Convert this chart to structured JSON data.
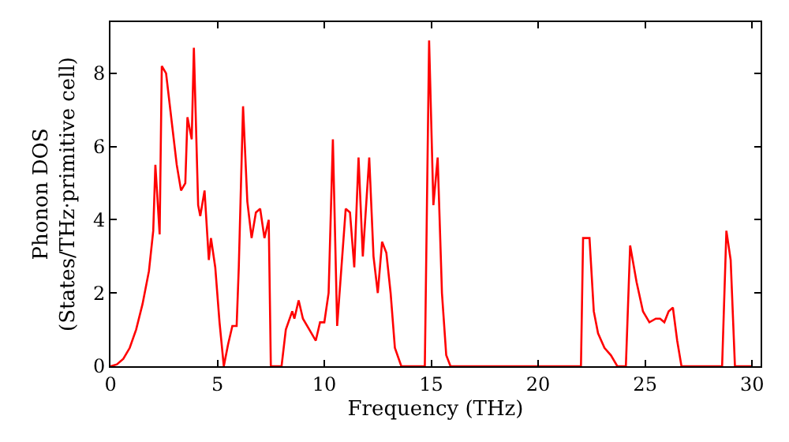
{
  "chart_data": {
    "type": "line",
    "xlabel": "Frequency (THz)",
    "ylabel": "Phonon DOS\n(States/THz·primitive cell)",
    "xlim": [
      0,
      30.4
    ],
    "ylim": [
      0,
      9.4
    ],
    "xticks": [
      0,
      5,
      10,
      15,
      20,
      25,
      30
    ],
    "yticks": [
      0,
      2,
      4,
      6,
      8
    ],
    "grid": false,
    "marker": "none",
    "line_style": "solid",
    "series": [
      {
        "color": "#ff0000",
        "x": [
          0,
          0.3,
          0.6,
          0.9,
          1.2,
          1.5,
          1.8,
          2.0,
          2.1,
          2.3,
          2.4,
          2.6,
          2.9,
          3.1,
          3.3,
          3.5,
          3.6,
          3.8,
          3.9,
          4.1,
          4.2,
          4.4,
          4.6,
          4.7,
          4.9,
          5.1,
          5.3,
          5.5,
          5.7,
          5.9,
          6.0,
          6.2,
          6.4,
          6.6,
          6.8,
          7.0,
          7.2,
          7.4,
          7.5,
          8.0,
          8.2,
          8.5,
          8.6,
          8.8,
          9.0,
          9.3,
          9.6,
          9.8,
          10.0,
          10.2,
          10.4,
          10.6,
          11.0,
          11.2,
          11.4,
          11.6,
          11.8,
          12.1,
          12.3,
          12.5,
          12.7,
          12.9,
          13.1,
          13.3,
          13.6,
          14.7,
          14.9,
          15.1,
          15.3,
          15.5,
          15.7,
          15.9,
          22.0,
          22.1,
          22.4,
          22.6,
          22.8,
          23.1,
          23.4,
          23.7,
          24.1,
          24.3,
          24.6,
          24.9,
          25.0,
          25.2,
          25.5,
          25.7,
          25.9,
          26.1,
          26.3,
          26.5,
          26.7,
          28.6,
          28.8,
          29.0,
          29.2,
          30.0
        ],
        "values": [
          0,
          0.05,
          0.2,
          0.5,
          1.0,
          1.7,
          2.6,
          3.7,
          5.5,
          3.6,
          8.2,
          8.0,
          6.5,
          5.5,
          4.8,
          5.0,
          6.8,
          6.2,
          8.7,
          4.4,
          4.1,
          4.8,
          2.9,
          3.5,
          2.7,
          1.2,
          0,
          0.6,
          1.1,
          1.1,
          2.7,
          7.1,
          4.5,
          3.5,
          4.2,
          4.3,
          3.5,
          4.0,
          0,
          0,
          1.0,
          1.5,
          1.3,
          1.8,
          1.3,
          1.0,
          0.7,
          1.2,
          1.2,
          2.0,
          6.2,
          1.1,
          4.3,
          4.2,
          2.7,
          5.7,
          3.0,
          5.7,
          3.0,
          2.0,
          3.4,
          3.1,
          2.0,
          0.5,
          0,
          0,
          8.9,
          4.4,
          5.7,
          2.0,
          0.3,
          0,
          0,
          3.5,
          3.5,
          1.5,
          0.9,
          0.5,
          0.3,
          0,
          0,
          3.3,
          2.3,
          1.5,
          1.4,
          1.2,
          1.3,
          1.3,
          1.2,
          1.5,
          1.6,
          0.7,
          0,
          0,
          3.7,
          2.9,
          0,
          0
        ]
      }
    ]
  }
}
